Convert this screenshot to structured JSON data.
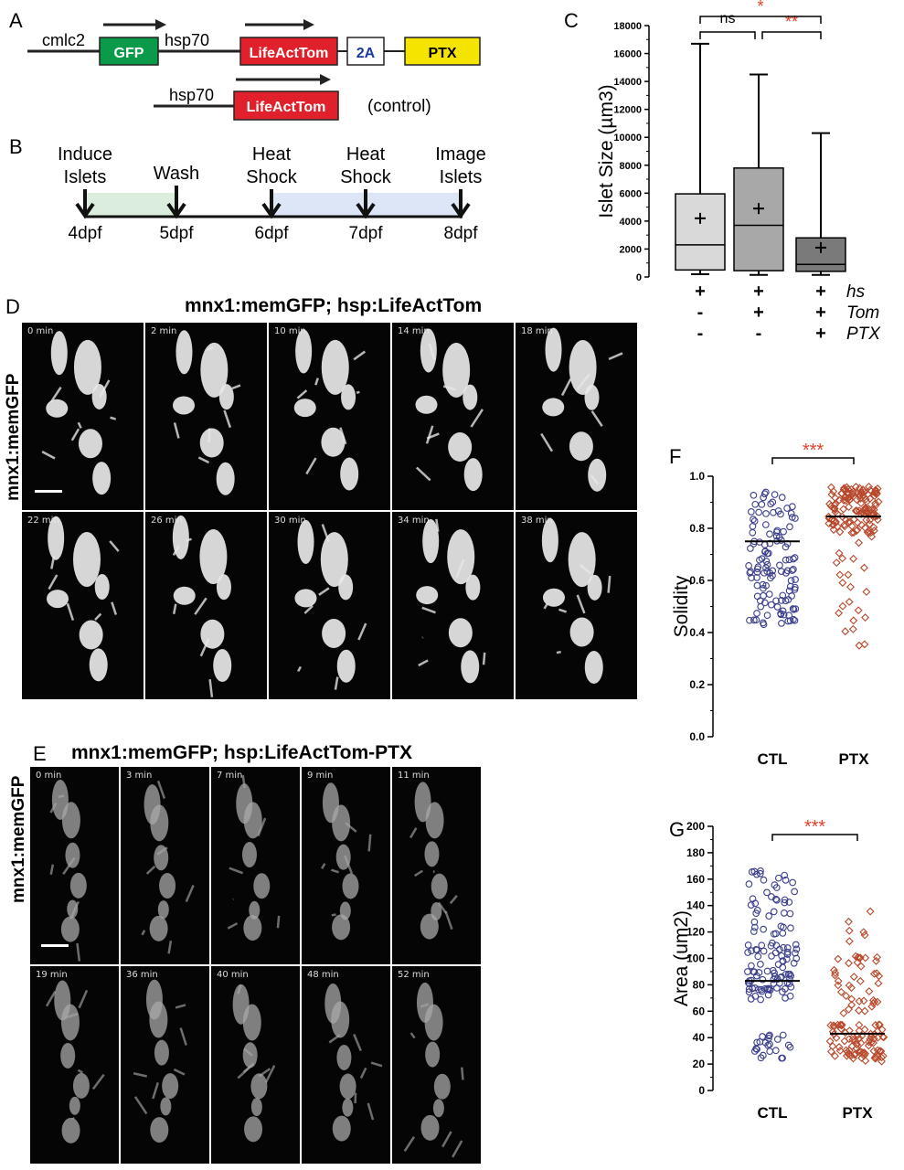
{
  "panels": {
    "A": {
      "letter": "A",
      "construct_main": {
        "promoter1": "cmlc2",
        "gene1": "GFP",
        "promoter2": "hsp70",
        "gene2": "LifeActTom",
        "linker": "2A",
        "gene3": "PTX"
      },
      "construct_control": {
        "promoter": "hsp70",
        "gene": "LifeActTom",
        "note": "(control)"
      },
      "colors": {
        "GFP": "#0a9a4a",
        "LifeActTom": "#e0202a",
        "PTX": "#f4e400"
      }
    },
    "B": {
      "letter": "B",
      "events": [
        "Induce\nIslets",
        "Wash",
        "Heat\nShock",
        "Heat\nShock",
        "Image\nIslets"
      ],
      "days": [
        "4dpf",
        "5dpf",
        "6dpf",
        "7dpf",
        "8dpf"
      ]
    },
    "C": {
      "letter": "C"
    },
    "D": {
      "letter": "D",
      "title": "mnx1:memGFP; hsp:LifeActTom",
      "side_label": "mnx1:memGFP",
      "timepoints": [
        "0 min",
        "2 min",
        "10 min",
        "14 min",
        "18 min",
        "22 min",
        "26 min",
        "30 min",
        "34 min",
        "38 min"
      ]
    },
    "E": {
      "letter": "E",
      "title": "mnx1:memGFP; hsp:LifeActTom-PTX",
      "side_label": "mnx1:memGFP",
      "timepoints": [
        "0 min",
        "3 min",
        "7 min",
        "9 min",
        "11 min",
        "19 min",
        "36 min",
        "40 min",
        "48 min",
        "52 min"
      ]
    },
    "F": {
      "letter": "F"
    },
    "G": {
      "letter": "G"
    }
  },
  "chart_data": [
    {
      "panel": "C",
      "type": "box",
      "ylabel": "Islet Size (µm3)",
      "ylim": [
        0,
        18000
      ],
      "yticks": [
        "0",
        "2000",
        "4000",
        "6000",
        "8000",
        "10000",
        "12000",
        "14000",
        "16000",
        "18000"
      ],
      "condition_rows": [
        {
          "name": "hs",
          "marks": [
            "+",
            "+",
            "+"
          ]
        },
        {
          "name": "Tom",
          "marks": [
            "-",
            "+",
            "+"
          ]
        },
        {
          "name": "PTX",
          "marks": [
            "-",
            "-",
            "+"
          ]
        }
      ],
      "boxes": [
        {
          "min": 200,
          "q1": 500,
          "median": 2300,
          "q3": 5950,
          "max": 16700,
          "mean": 4200,
          "color": "#d9d9d9"
        },
        {
          "min": 150,
          "q1": 450,
          "median": 3700,
          "q3": 7800,
          "max": 14500,
          "mean": 4900,
          "color": "#a8a8a8"
        },
        {
          "min": 150,
          "q1": 400,
          "median": 900,
          "q3": 2800,
          "max": 10300,
          "mean": 2100,
          "color": "#7a7a7a"
        }
      ],
      "significance": [
        {
          "from": 0,
          "to": 1,
          "label": "ns",
          "color": "#000000"
        },
        {
          "from": 1,
          "to": 2,
          "label": "**",
          "color": "#e8402a"
        },
        {
          "from": 0,
          "to": 2,
          "label": "*",
          "color": "#e8402a"
        }
      ]
    },
    {
      "panel": "F",
      "type": "scatter",
      "ylabel": "Solidity",
      "ylim": [
        0,
        1.0
      ],
      "yticks": [
        "0.0",
        "0.2",
        "0.4",
        "0.6",
        "0.8",
        "1.0"
      ],
      "categories": [
        "CTL",
        "PTX"
      ],
      "series": [
        {
          "category": "CTL",
          "marker": "circle",
          "color": "#3b3f8c",
          "mean": 0.75
        },
        {
          "category": "PTX",
          "marker": "diamond",
          "color": "#b8482a",
          "mean": 0.845
        }
      ],
      "significance": {
        "label": "***",
        "color": "#e8402a"
      }
    },
    {
      "panel": "G",
      "type": "scatter",
      "ylabel": "Area (um2)",
      "ylim": [
        0,
        200
      ],
      "yticks": [
        "0",
        "20",
        "40",
        "60",
        "80",
        "100",
        "120",
        "140",
        "160",
        "180",
        "200"
      ],
      "categories": [
        "CTL",
        "PTX"
      ],
      "series": [
        {
          "category": "CTL",
          "marker": "circle",
          "color": "#3b3f8c",
          "mean": 83
        },
        {
          "category": "PTX",
          "marker": "diamond",
          "color": "#b8482a",
          "mean": 43
        }
      ],
      "significance": {
        "label": "***",
        "color": "#e8402a"
      }
    }
  ]
}
